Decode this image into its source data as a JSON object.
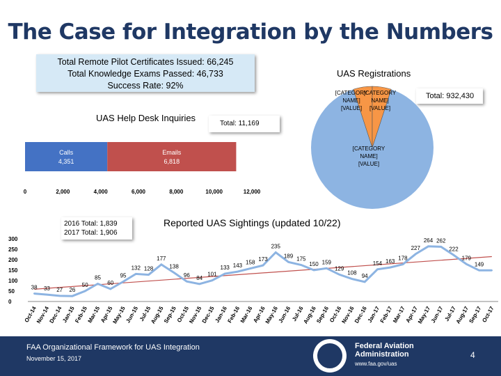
{
  "slide": {
    "title": "The Case for Integration by the Numbers",
    "stats": [
      "Total Remote Pilot Certificates Issued: 66,245",
      "Total Knowledge Exams Passed: 46,733",
      "Success Rate: 92%"
    ],
    "page_number": "4"
  },
  "footer": {
    "left_line1": "FAA Organizational Framework for UAS Integration",
    "left_line2": "November 15, 2017",
    "agency_line1": "Federal Aviation",
    "agency_line2": "Administration",
    "url": "www.faa.gov/uas"
  },
  "colors": {
    "navy": "#1f3864",
    "calls": "#4472c4",
    "emails": "#c0504d",
    "pie_main": "#8db4e2",
    "pie_slice": "#f79646",
    "line_blue": "#8db4e2",
    "trend_red": "#c0504d"
  },
  "chart_data": [
    {
      "type": "bar",
      "title": "UAS Help Desk Inquiries",
      "total_label": "Total: 11,169",
      "orientation": "horizontal-stacked",
      "series": [
        {
          "name": "Calls",
          "value": 4351,
          "label": "4,351"
        },
        {
          "name": "Emails",
          "value": 6818,
          "label": "6,818"
        }
      ],
      "xlim": [
        0,
        12000
      ],
      "xticks": [
        "0",
        "2,000",
        "4,000",
        "6,000",
        "8,000",
        "10,000",
        "12,000"
      ]
    },
    {
      "type": "pie",
      "title": "UAS Registrations",
      "total_label": "Total: 932,430",
      "slices": [
        {
          "label": "[CATEGORY NAME] [VALUE]",
          "fraction": 0.05
        },
        {
          "label": "[CATEGORY NAME] [VALUE]",
          "fraction": 0.05
        },
        {
          "label": "[CATEGORY NAME] [VALUE]",
          "fraction": 0.9
        }
      ]
    },
    {
      "type": "line",
      "title": "Reported UAS Sightings (updated 10/22)",
      "year_totals": [
        "2016 Total: 1,839",
        "2017 Total: 1,906"
      ],
      "categories": [
        "Oct-14",
        "Nov-14",
        "Dec-14",
        "Jan-15",
        "Feb-15",
        "Mar-15",
        "Apr-15",
        "May-15",
        "Jun-15",
        "Jul-15",
        "Aug-15",
        "Sep-15",
        "Oct-15",
        "Nov-15",
        "Dec-15",
        "Jan-16",
        "Feb-16",
        "Mar-16",
        "Apr-16",
        "May-16",
        "Jun-16",
        "Jul-16",
        "Aug-16",
        "Sep-16",
        "Oct-16",
        "Nov-16",
        "Dec-16",
        "Jan-17",
        "Feb-17",
        "Mar-17",
        "Apr-17",
        "May-17",
        "Jun-17",
        "Jul-17",
        "Aug-17",
        "Sep-17",
        "Oct-17"
      ],
      "values": [
        38,
        33,
        27,
        26,
        50,
        85,
        60,
        95,
        132,
        128,
        177,
        138,
        96,
        84,
        101,
        133,
        143,
        158,
        173,
        235,
        189,
        175,
        150,
        159,
        129,
        108,
        94,
        154,
        163,
        178,
        227,
        264,
        262,
        222,
        179,
        149,
        149
      ],
      "data_labels": [
        "38",
        "33",
        "27",
        "26",
        "50",
        "85",
        "60",
        "95",
        "132",
        "128",
        "177",
        "138",
        "96",
        "84",
        "101",
        "133",
        "143",
        "158",
        "173",
        "235",
        "189",
        "175",
        "150",
        "159",
        "129",
        "108",
        "94",
        "154",
        "163",
        "178",
        "227",
        "264",
        "262",
        "222",
        "179",
        "149",
        ""
      ],
      "trend": "linear",
      "ylim": [
        0,
        300
      ],
      "yticks": [
        "0",
        "50",
        "100",
        "150",
        "200",
        "250",
        "300"
      ]
    }
  ]
}
